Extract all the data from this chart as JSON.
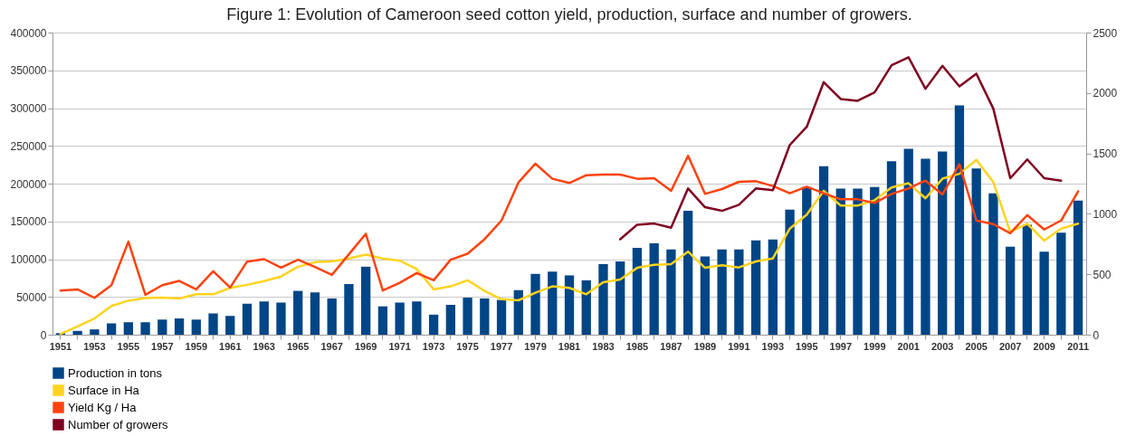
{
  "chart_data": {
    "type": "bar",
    "title": "Figure 1: Evolution of Cameroon seed cotton yield, production, surface and number of growers.",
    "categories": [
      "1951",
      null,
      "1953",
      null,
      "1955",
      null,
      "1957",
      null,
      "1959",
      null,
      "1961",
      null,
      "1963",
      null,
      "1965",
      null,
      "1967",
      null,
      "1969",
      null,
      "1971",
      null,
      "1973",
      null,
      "1975",
      null,
      "1977",
      null,
      "1979",
      null,
      "1981",
      null,
      "1983",
      null,
      "1985",
      null,
      "1987",
      null,
      "1989",
      null,
      "1991",
      null,
      "1993",
      null,
      "1995",
      null,
      "1997",
      null,
      "1999",
      null,
      "2001",
      null,
      "2003",
      null,
      "2005",
      null,
      "2007",
      null,
      "2009",
      null,
      "2011"
    ],
    "series": [
      {
        "name": "Production in tons",
        "color": "#004586",
        "values": [
          2000,
          5000,
          7000,
          15000,
          16500,
          16500,
          20000,
          21500,
          20000,
          28000,
          25000,
          41000,
          44000,
          42500,
          58000,
          56000,
          48000,
          67000,
          90000,
          37500,
          42500,
          44000,
          26500,
          39500,
          49000,
          48000,
          46000,
          59000,
          80500,
          83500,
          78500,
          72000,
          93500,
          97000,
          115000,
          121000,
          113000,
          164000,
          103500,
          113000,
          113000,
          125000,
          126000,
          165500,
          195500,
          223000,
          193500,
          193500,
          195500,
          229500,
          246000,
          233000,
          242500,
          303500,
          220000,
          187000,
          116500,
          145500,
          110000,
          135000,
          177500
        ]
      },
      {
        "name": "Surface  in Ha",
        "type": "line",
        "color": "#ffd320",
        "values": [
          1000,
          11000,
          21500,
          38000,
          45000,
          48500,
          49000,
          48000,
          53500,
          53500,
          62000,
          66000,
          71000,
          77000,
          90000,
          96000,
          97000,
          101000,
          106000,
          101000,
          98000,
          87000,
          60000,
          64000,
          72000,
          58000,
          47000,
          45500,
          55500,
          64000,
          62000,
          53500,
          69500,
          73000,
          88500,
          92500,
          93500,
          110000,
          88500,
          92000,
          89000,
          97000,
          101000,
          140500,
          159000,
          190500,
          171000,
          171000,
          178000,
          195000,
          200500,
          180500,
          206500,
          213000,
          231500,
          202000,
          136000,
          147000,
          124500,
          140500,
          147000
        ]
      },
      {
        "name": "Yield Kg / Ha",
        "type": "line",
        "axis": "y2",
        "color": "#ff420e",
        "values": [
          365,
          375,
          305,
          410,
          770,
          330,
          410,
          445,
          375,
          525,
          390,
          605,
          625,
          555,
          620,
          560,
          495,
          665,
          835,
          365,
          430,
          510,
          450,
          620,
          670,
          790,
          945,
          1260,
          1415,
          1290,
          1255,
          1320,
          1325,
          1325,
          1290,
          1295,
          1190,
          1480,
          1165,
          1205,
          1265,
          1270,
          1230,
          1170,
          1225,
          1170,
          1120,
          1120,
          1090,
          1165,
          1210,
          1275,
          1160,
          1410,
          945,
          915,
          840,
          990,
          870,
          945,
          1185
        ]
      },
      {
        "name": "Number of growers",
        "type": "line",
        "axis": "y2",
        "color": "#7e0021",
        "values": [
          null,
          null,
          null,
          null,
          null,
          null,
          null,
          null,
          null,
          null,
          null,
          null,
          null,
          null,
          null,
          null,
          null,
          null,
          null,
          null,
          null,
          null,
          null,
          null,
          null,
          null,
          null,
          null,
          null,
          null,
          null,
          null,
          null,
          790,
          910,
          920,
          885,
          1210,
          1055,
          1025,
          1075,
          1210,
          1195,
          1570,
          1720,
          2090,
          1950,
          1935,
          2005,
          2230,
          2295,
          2035,
          2225,
          2055,
          2160,
          1870,
          1295,
          1450,
          1295,
          1275,
          null
        ]
      }
    ],
    "ylim": [
      0,
      400000
    ],
    "yticks": [
      0,
      50000,
      100000,
      150000,
      200000,
      250000,
      300000,
      350000,
      400000
    ],
    "y2lim": [
      0,
      2500
    ],
    "y2ticks": [
      0,
      500,
      1000,
      1500,
      2000,
      2500
    ],
    "grid": "y",
    "legend": "bottom"
  }
}
